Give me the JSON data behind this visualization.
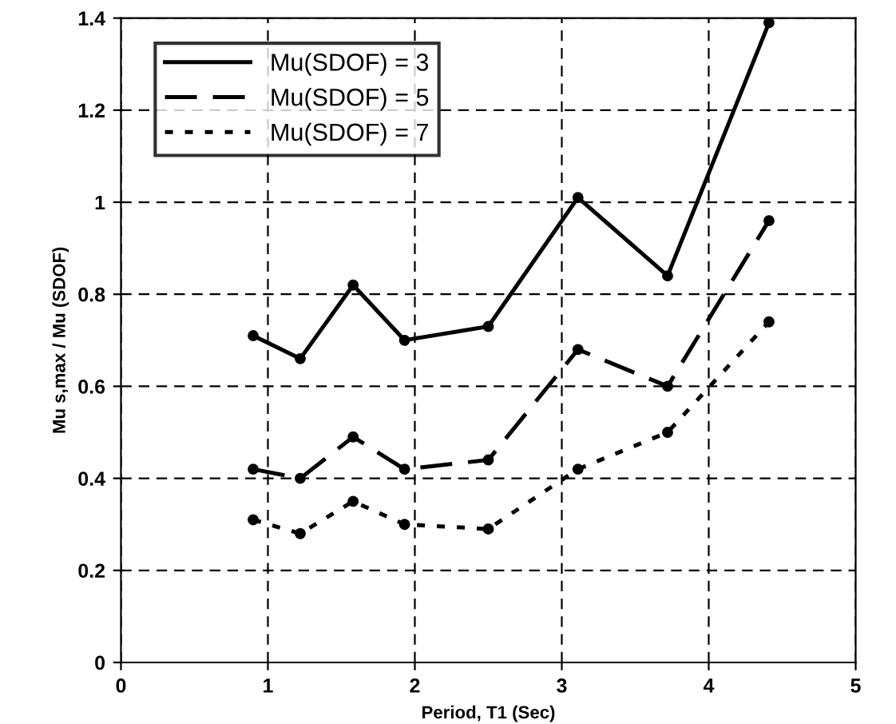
{
  "chart_data": {
    "type": "line",
    "xlabel": "Period, T1 (Sec)",
    "ylabel": "Mu s,max / Mu (SDOF)",
    "x": [
      0.9,
      1.22,
      1.58,
      1.93,
      2.5,
      3.11,
      3.72,
      4.41
    ],
    "series": [
      {
        "name": "Mu(SDOF) = 3",
        "color": "#000000",
        "line_style": "solid",
        "values": [
          0.71,
          0.66,
          0.82,
          0.7,
          0.73,
          1.01,
          0.84,
          1.39
        ]
      },
      {
        "name": "Mu(SDOF) = 5",
        "color": "#000000",
        "line_style": "dashed",
        "values": [
          0.42,
          0.4,
          0.49,
          0.42,
          0.44,
          0.68,
          0.6,
          0.96
        ]
      },
      {
        "name": "Mu(SDOF) = 7",
        "color": "#000000",
        "line_style": "dotted",
        "values": [
          0.31,
          0.28,
          0.35,
          0.3,
          0.29,
          0.42,
          0.5,
          0.74
        ]
      }
    ],
    "xlim": [
      0,
      5
    ],
    "xticks": [
      0,
      1,
      2,
      3,
      4,
      5
    ],
    "ylim": [
      0,
      1.4
    ],
    "yticks": [
      0,
      0.2,
      0.4,
      0.6,
      0.8,
      1,
      1.2,
      1.4
    ],
    "grid": true,
    "legend": "top left",
    "marker": "circle"
  }
}
